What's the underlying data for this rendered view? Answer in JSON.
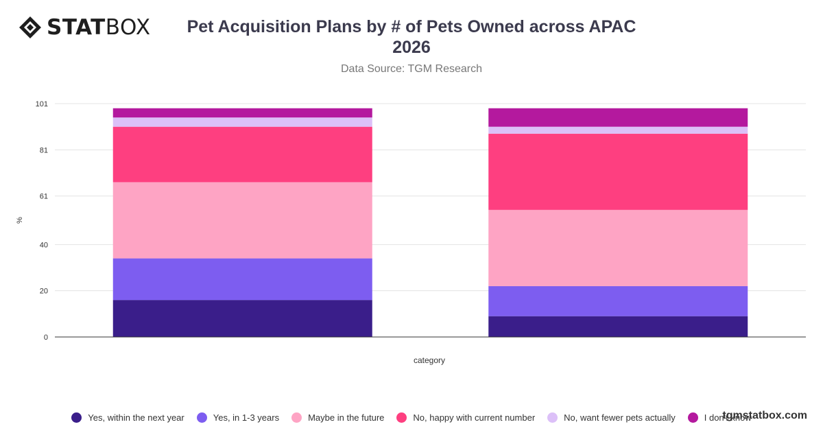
{
  "header": {
    "logo_bold": "STAT",
    "logo_light": "BOX",
    "logo_icon": "diamond-logo-icon",
    "title": "Pet Acquisition Plans by # of Pets Owned across APAC",
    "title_line2": "2026",
    "subtitle": "Data Source: TGM Research"
  },
  "watermark": "tgmstatbox.com",
  "chart_data": {
    "type": "bar",
    "stacked": true,
    "categories": [
      "",
      ""
    ],
    "xlabel": "category",
    "ylabel": "%",
    "ylim": [
      0,
      101
    ],
    "yticks": [
      "0",
      "20",
      "40",
      "61",
      "81",
      "101"
    ],
    "grid": true,
    "legend_position": "bottom",
    "series": [
      {
        "name": "Yes, within the next year",
        "color": "#3a1e8a",
        "values": [
          16,
          9
        ]
      },
      {
        "name": "Yes, in 1-3 years",
        "color": "#7d5df0",
        "values": [
          18,
          13
        ]
      },
      {
        "name": "Maybe in the future",
        "color": "#fea4c4",
        "values": [
          33,
          33
        ]
      },
      {
        "name": "No, happy with current number",
        "color": "#fe3f80",
        "values": [
          24,
          33
        ]
      },
      {
        "name": "No, want fewer pets actually",
        "color": "#dcc0f8",
        "values": [
          4,
          3
        ]
      },
      {
        "name": "I don't know",
        "color": "#b4199e",
        "values": [
          4,
          8
        ]
      }
    ]
  }
}
